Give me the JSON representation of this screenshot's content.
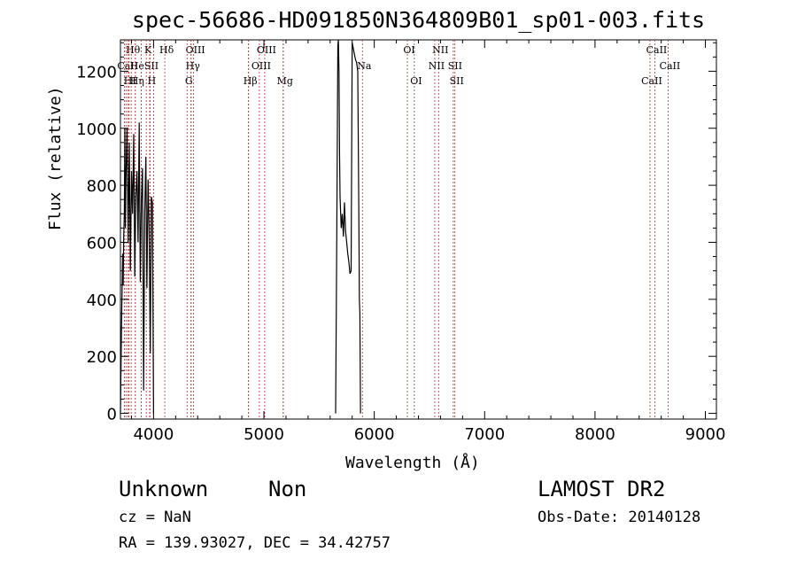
{
  "chart_data": {
    "type": "line",
    "title": "spec-56686-HD091850N364809B01_sp01-003.fits",
    "xlabel": "Wavelength (Å)",
    "ylabel": "Flux (relative)",
    "xlim": [
      3700,
      9100
    ],
    "ylim": [
      -20,
      1310
    ],
    "xticks": [
      4000,
      5000,
      6000,
      7000,
      8000,
      9000
    ],
    "yticks": [
      0,
      200,
      400,
      600,
      800,
      1000,
      1200
    ],
    "spectrum": [
      {
        "x": [
          3700,
          3710,
          3720,
          3725,
          3730,
          3735,
          3740,
          3745,
          3750,
          3760,
          3770,
          3780,
          3790,
          3800,
          3810,
          3820,
          3830,
          3840,
          3850,
          3860,
          3870,
          3880,
          3890,
          3900,
          3910,
          3920,
          3930,
          3940,
          3950,
          3960,
          3970,
          3980,
          3990,
          4000
        ],
        "y": [
          0,
          300,
          560,
          450,
          620,
          700,
          1000,
          650,
          820,
          1000,
          600,
          950,
          500,
          850,
          700,
          980,
          480,
          760,
          850,
          600,
          1020,
          460,
          750,
          860,
          80,
          700,
          900,
          440,
          820,
          650,
          210,
          760,
          740,
          0
        ]
      },
      {
        "x": [
          5650,
          5660,
          5670,
          5675,
          5680,
          5685,
          5690,
          5700,
          5710,
          5720,
          5730,
          5740,
          5750,
          5760,
          5770,
          5780,
          5790,
          5800,
          5810,
          5820,
          5830,
          5840,
          5850,
          5860,
          5865,
          5870,
          5875
        ],
        "y": [
          0,
          620,
          1290,
          1310,
          1200,
          920,
          760,
          650,
          700,
          620,
          740,
          640,
          600,
          560,
          530,
          490,
          500,
          1300,
          1280,
          1260,
          1240,
          1230,
          1200,
          700,
          400,
          350,
          0
        ]
      }
    ],
    "lines": [
      {
        "label": "Hθ",
        "x": 3798,
        "row": 0
      },
      {
        "label": "CaII",
        "x": 3750,
        "row": 1
      },
      {
        "label": "HI",
        "x": 3770,
        "row": 2
      },
      {
        "label": "He",
        "x": 3835,
        "row": 1
      },
      {
        "label": "Hη",
        "x": 3835,
        "row": 2
      },
      {
        "label": "K",
        "x": 3934,
        "row": 0
      },
      {
        "label": "SII",
        "x": 3965,
        "row": 1
      },
      {
        "label": "H",
        "x": 3968,
        "row": 2
      },
      {
        "label": "Hδ",
        "x": 4102,
        "row": 0
      },
      {
        "label": "OIII",
        "x": 4363,
        "row": 0
      },
      {
        "label": "Hγ",
        "x": 4340,
        "row": 1
      },
      {
        "label": "G",
        "x": 4304,
        "row": 2
      },
      {
        "label": "OIII",
        "x": 5007,
        "row": 0
      },
      {
        "label": "OIII",
        "x": 4959,
        "row": 1
      },
      {
        "label": "Hβ",
        "x": 4861,
        "row": 2
      },
      {
        "label": "Mg",
        "x": 5175,
        "row": 2
      },
      {
        "label": "Na",
        "x": 5893,
        "row": 1
      },
      {
        "label": "OI",
        "x": 6300,
        "row": 0
      },
      {
        "label": "OI",
        "x": 6363,
        "row": 2
      },
      {
        "label": "NII",
        "x": 6583,
        "row": 0
      },
      {
        "label": "NII",
        "x": 6548,
        "row": 1
      },
      {
        "label": "SII",
        "x": 6716,
        "row": 1
      },
      {
        "label": "SII",
        "x": 6731,
        "row": 2
      },
      {
        "label": "CaII",
        "x": 8542,
        "row": 0
      },
      {
        "label": "CaII",
        "x": 8662,
        "row": 1
      },
      {
        "label": "CaII",
        "x": 8498,
        "row": 2
      }
    ],
    "extra_marker_lines": [
      3736,
      3779,
      3889,
      4000,
      4340,
      4861,
      5175
    ]
  },
  "info": {
    "object_class": "Unknown",
    "subclass": "Non",
    "survey": "LAMOST DR2",
    "cz": "cz = NaN",
    "obs_date": "Obs-Date: 20140128",
    "coords": "RA = 139.93027, DEC =  34.42757"
  }
}
